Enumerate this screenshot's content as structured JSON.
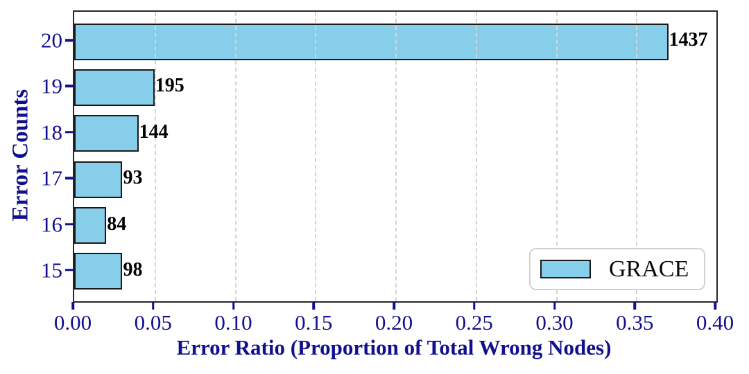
{
  "chart_data": {
    "type": "bar",
    "orientation": "horizontal",
    "title": "",
    "xlabel": "Error Ratio (Proportion of Total Wrong Nodes)",
    "ylabel": "Error Counts",
    "categories": [
      "20",
      "19",
      "18",
      "17",
      "16",
      "15"
    ],
    "values": [
      0.37,
      0.05,
      0.04,
      0.03,
      0.02,
      0.03
    ],
    "bar_labels": [
      "1437",
      "195",
      "144",
      "93",
      "84",
      "98"
    ],
    "xlim": [
      0.0,
      0.4
    ],
    "x_tick_values": [
      0.0,
      0.05,
      0.1,
      0.15,
      0.2,
      0.25,
      0.3,
      0.35,
      0.4
    ],
    "x_tick_labels": [
      "0.00",
      "0.05",
      "0.10",
      "0.15",
      "0.20",
      "0.25",
      "0.30",
      "0.35",
      "0.40"
    ],
    "grid": "vertical-dashed",
    "legend": {
      "label": "GRACE",
      "position": "lower-right"
    },
    "colors": {
      "bar_fill": "#87CEEB",
      "bar_edge": "#1a1a1a",
      "axis_text": "#10108e",
      "tick_mark": "#10108e",
      "value_label": "#000000",
      "grid": "#d4d4d4",
      "spine": "#262626",
      "legend_border": "#d2d2d2",
      "legend_text": "#0a0a0a"
    }
  }
}
